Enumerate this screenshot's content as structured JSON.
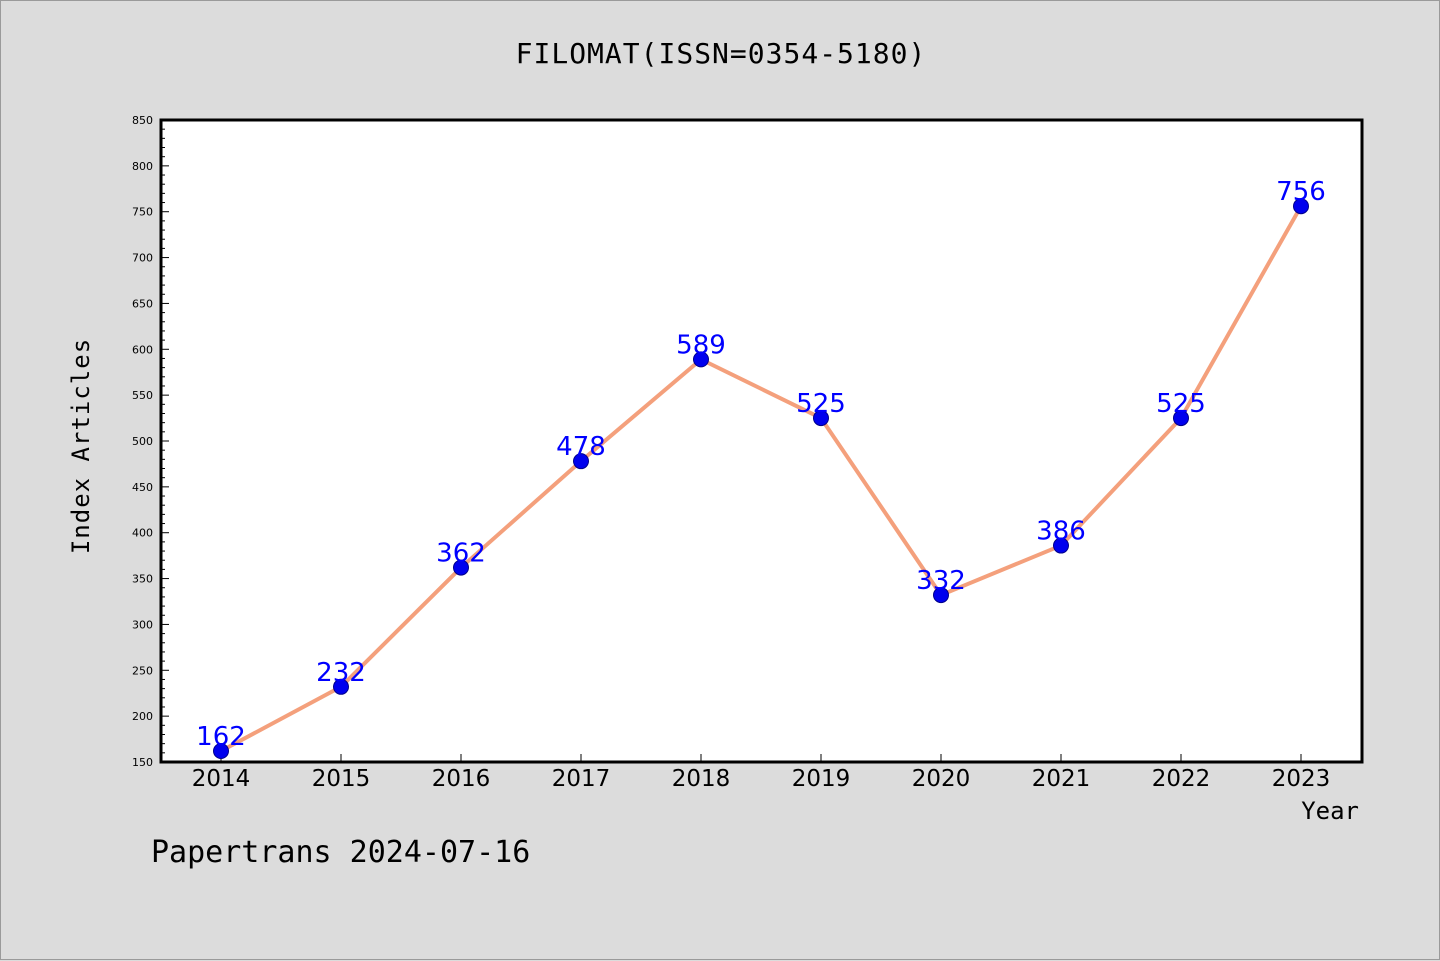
{
  "title": "FILOMAT(ISSN=0354-5180)",
  "footer": "Papertrans 2024-07-16",
  "colors": {
    "background": "#dcdcdc",
    "plot_background": "#ffffff",
    "line": "#f4a07c",
    "marker": "#0000ee",
    "value_label": "#0000ff"
  },
  "chart_data": {
    "type": "line",
    "title": "FILOMAT(ISSN=0354-5180)",
    "xlabel": "Year",
    "ylabel": "Index Articles",
    "categories": [
      "2014",
      "2015",
      "2016",
      "2017",
      "2018",
      "2019",
      "2020",
      "2021",
      "2022",
      "2023"
    ],
    "series": [
      {
        "values": [
          162,
          232,
          362,
          478,
          589,
          525,
          332,
          386,
          525,
          756
        ]
      }
    ],
    "ylim": [
      150,
      850
    ],
    "yticks": [
      150,
      200,
      250,
      300,
      350,
      400,
      450,
      500,
      550,
      600,
      650,
      700,
      750,
      800,
      850
    ],
    "grid": false,
    "legend": "none"
  }
}
